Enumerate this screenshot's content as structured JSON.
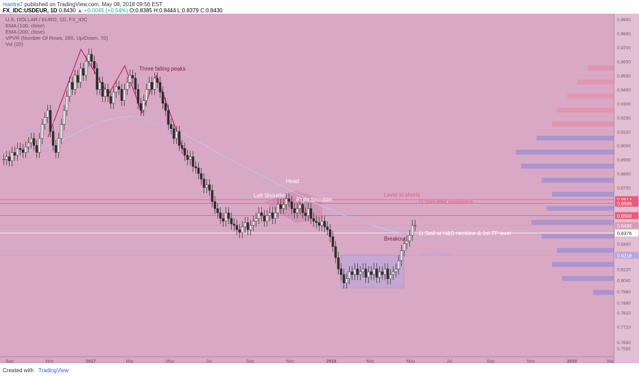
{
  "header": {
    "author": "mantra7",
    "published": "published on TradingView.com, May 08, 2018 09:56 EST",
    "symbol": "FX_IDC:USDEUR, 1D",
    "ohlc_open": "0.8430",
    "change": "▲ +0.0045 (+0.54%)",
    "ohlc_rest": "O:0.8385 H:0.8444 L:0.8379 C:0.8430"
  },
  "legend": [
    "U.S. DOLLAR / EURO, 1D, FX_IDC",
    "EMA (100, close)",
    "EMA (200, close)",
    "VPVR (Number Of Rows, 285, Up/Down, 70)",
    "Vol (20)"
  ],
  "footer": {
    "created": "Created with",
    "brand": "TradingView"
  },
  "colors": {
    "background": "#d8a8c4",
    "candle": "#3a3a3a",
    "ema": "#c9c0e3",
    "neckline": "#ffffff",
    "box": "#b7a9dd",
    "annotation_red": "#e85a78"
  },
  "chart_data": {
    "type": "candlestick",
    "symbol": "USDEUR",
    "timeframe": "1D",
    "ylim": [
      0.7555,
      0.99
    ],
    "y_ticks": [
      0.99,
      0.98,
      0.97,
      0.96,
      0.95,
      0.94,
      0.93,
      0.92,
      0.91,
      0.9,
      0.89,
      0.88,
      0.87,
      0.8614,
      0.8588,
      0.85,
      0.843,
      0.8376,
      0.83,
      0.8218,
      0.812,
      0.804,
      0.796,
      0.788,
      0.781,
      0.771,
      0.76,
      0.7555
    ],
    "x_tick_labels": [
      "Sep",
      "Nov",
      "2017",
      "Mar",
      "May",
      "Jul",
      "Sep",
      "Nov",
      "2018",
      "Mar",
      "May",
      "Jul",
      "Sep",
      "Nov",
      "2019",
      "Mar"
    ],
    "price_levels": [
      {
        "label": "0.8614",
        "value": 0.8614
      },
      {
        "label": "0.8588",
        "value": 0.8588
      },
      {
        "label": "0.8500",
        "value": 0.85
      },
      {
        "label": "0.8430",
        "value": 0.843
      },
      {
        "label": "0.8376",
        "value": 0.8376
      },
      {
        "label": "0.8218",
        "value": 0.8218
      }
    ],
    "series": [
      {
        "x": [
          0,
          4,
          8,
          12,
          16,
          20,
          24,
          28,
          32,
          36,
          40,
          44,
          48,
          52,
          56,
          60,
          64,
          68,
          72,
          76,
          80,
          84,
          88,
          92,
          96,
          100,
          104,
          108,
          112,
          116,
          120,
          124,
          128,
          132,
          136,
          140,
          144,
          148,
          152,
          156,
          160,
          164,
          168,
          172,
          176,
          180,
          184,
          188,
          192,
          196,
          200,
          204,
          208,
          212,
          216,
          220,
          224,
          228,
          232,
          236,
          240,
          244,
          248,
          252,
          256,
          260,
          264,
          268,
          272,
          276,
          280,
          284,
          288,
          292,
          296,
          300,
          304,
          308,
          312,
          316,
          320,
          324,
          328,
          332,
          336,
          340,
          344,
          348,
          352,
          356,
          360,
          364,
          368,
          372,
          376,
          380,
          384,
          388,
          392,
          396,
          400,
          404,
          408,
          412,
          416,
          420,
          424,
          428,
          432,
          436,
          440,
          444,
          448,
          452,
          456,
          460,
          464,
          468,
          472,
          476,
          480,
          484,
          488,
          492,
          496,
          500,
          504,
          508,
          512,
          516,
          520,
          524,
          528,
          532,
          536,
          540,
          544,
          548,
          552,
          556,
          560,
          564,
          568,
          572,
          576,
          580,
          584,
          588,
          592,
          596,
          600
        ],
        "close": [
          0.89,
          0.892,
          0.889,
          0.895,
          0.893,
          0.898,
          0.897,
          0.895,
          0.899,
          0.902,
          0.905,
          0.9,
          0.895,
          0.905,
          0.915,
          0.92,
          0.925,
          0.91,
          0.9,
          0.895,
          0.905,
          0.915,
          0.925,
          0.935,
          0.945,
          0.94,
          0.95,
          0.945,
          0.955,
          0.95,
          0.96,
          0.965,
          0.96,
          0.955,
          0.94,
          0.945,
          0.935,
          0.94,
          0.935,
          0.93,
          0.938,
          0.942,
          0.94,
          0.932,
          0.94,
          0.945,
          0.95,
          0.948,
          0.94,
          0.93,
          0.925,
          0.932,
          0.94,
          0.945,
          0.94,
          0.948,
          0.945,
          0.938,
          0.93,
          0.925,
          0.915,
          0.912,
          0.905,
          0.91,
          0.9,
          0.898,
          0.893,
          0.89,
          0.892,
          0.885,
          0.884,
          0.88,
          0.876,
          0.87,
          0.872,
          0.868,
          0.86,
          0.855,
          0.852,
          0.848,
          0.846,
          0.852,
          0.848,
          0.844,
          0.843,
          0.84,
          0.838,
          0.842,
          0.845,
          0.84,
          0.843,
          0.846,
          0.848,
          0.852,
          0.85,
          0.846,
          0.85,
          0.852,
          0.848,
          0.852,
          0.858,
          0.855,
          0.858,
          0.862,
          0.86,
          0.855,
          0.852,
          0.855,
          0.858,
          0.852,
          0.85,
          0.855,
          0.848,
          0.846,
          0.845,
          0.843,
          0.846,
          0.842,
          0.84,
          0.835,
          0.828,
          0.82,
          0.812,
          0.808,
          0.802,
          0.805,
          0.81,
          0.808,
          0.812,
          0.808,
          0.81,
          0.812,
          0.806,
          0.81,
          0.808,
          0.812,
          0.806,
          0.81,
          0.808,
          0.812,
          0.805,
          0.808,
          0.81,
          0.812,
          0.818,
          0.825,
          0.83,
          0.832,
          0.836,
          0.843,
          0.843
        ]
      }
    ],
    "ema_100": [
      0.893,
      0.895,
      0.897,
      0.901,
      0.906,
      0.912,
      0.917,
      0.92,
      0.921,
      0.917,
      0.912,
      0.908,
      0.902,
      0.895,
      0.889,
      0.883,
      0.877,
      0.871,
      0.865,
      0.859,
      0.854,
      0.849,
      0.845,
      0.841,
      0.838,
      0.837
    ],
    "ema_200": [
      0.905,
      0.908,
      0.912,
      0.916,
      0.92,
      0.923,
      0.925,
      0.924,
      0.921,
      0.917,
      0.912,
      0.906,
      0.899,
      0.892,
      0.886,
      0.88,
      0.874,
      0.868,
      0.863,
      0.858,
      0.853,
      0.849,
      0.845,
      0.842,
      0.84,
      0.838
    ],
    "volume_profile": [
      {
        "price": 0.955,
        "volume": 0.25
      },
      {
        "price": 0.945,
        "volume": 0.35
      },
      {
        "price": 0.935,
        "volume": 0.45
      },
      {
        "price": 0.925,
        "volume": 0.55
      },
      {
        "price": 0.915,
        "volume": 0.6
      },
      {
        "price": 0.905,
        "volume": 0.75
      },
      {
        "price": 0.895,
        "volume": 0.95
      },
      {
        "price": 0.885,
        "volume": 0.9
      },
      {
        "price": 0.875,
        "volume": 0.7
      },
      {
        "price": 0.865,
        "volume": 0.6
      },
      {
        "price": 0.855,
        "volume": 0.65
      },
      {
        "price": 0.845,
        "volume": 0.8
      },
      {
        "price": 0.835,
        "volume": 0.7
      },
      {
        "price": 0.825,
        "volume": 0.55
      },
      {
        "price": 0.815,
        "volume": 0.6
      },
      {
        "price": 0.805,
        "volume": 0.5
      },
      {
        "price": 0.795,
        "volume": 0.2
      }
    ],
    "annotations": [
      {
        "text": "Three falling peaks"
      },
      {
        "text": "Head"
      },
      {
        "text": "Left Shoulder"
      },
      {
        "text": "Right Shoulder"
      },
      {
        "text": "Lever in shorts"
      },
      {
        "text": "2) Shoulder resistance"
      },
      {
        "text": "1) Stall at H&S neckline & 1st TP level"
      },
      {
        "text": "Breakout"
      },
      {
        "text": "2nd TP level"
      }
    ]
  }
}
